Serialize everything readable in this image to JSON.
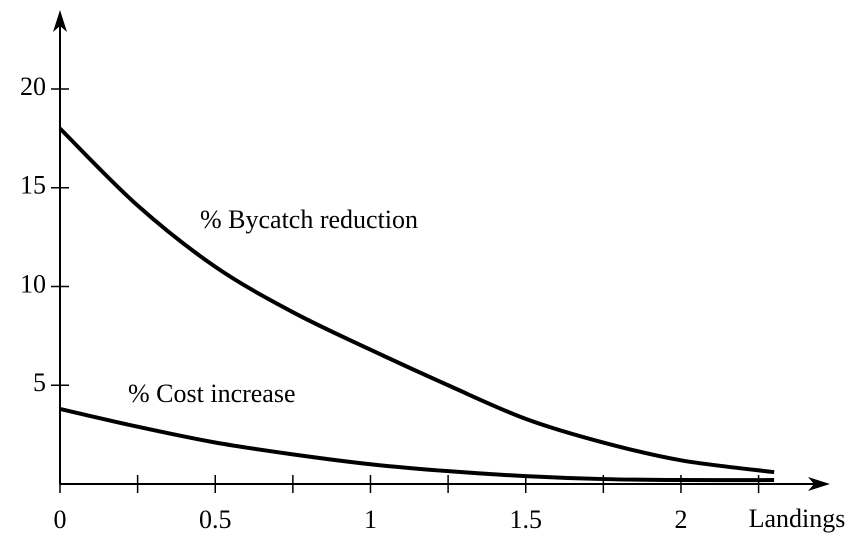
{
  "chart_data": {
    "type": "line",
    "x_label": "Landings",
    "x": [
      0,
      0.25,
      0.5,
      0.75,
      1,
      1.25,
      1.5,
      1.75,
      2,
      2.3
    ],
    "series": [
      {
        "name": "% Bycatch reduction",
        "color": "#000000",
        "values": [
          18,
          14.1,
          11.0,
          8.7,
          6.8,
          5.0,
          3.3,
          2.1,
          1.2,
          0.6
        ]
      },
      {
        "name": "% Cost increase",
        "color": "#000000",
        "values": [
          3.8,
          2.9,
          2.1,
          1.5,
          1.0,
          0.65,
          0.4,
          0.25,
          0.2,
          0.2
        ]
      }
    ],
    "xlim": [
      0,
      2.48
    ],
    "ylim": [
      0,
      24
    ],
    "xticks": [
      0,
      {
        "value": 0.25
      },
      0.5,
      {
        "value": 0.75
      },
      1,
      {
        "value": 1.25
      },
      1.5,
      {
        "value": 1.75
      },
      2,
      {
        "value": 2.25
      }
    ],
    "yticks": [
      5,
      10,
      15,
      20
    ],
    "grid": false
  }
}
